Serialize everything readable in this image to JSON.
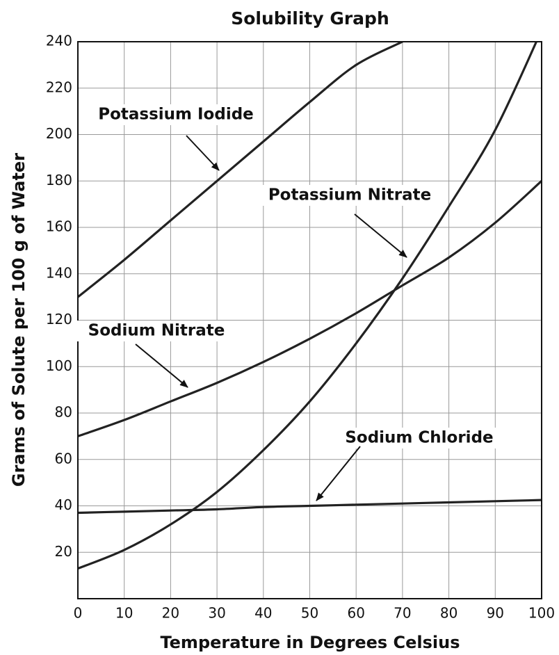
{
  "chart_data": {
    "type": "line",
    "title": "Solubility Graph",
    "x_label": "Temperature in Degrees Celsius",
    "y_label": "Grams of Solute per 100 g of Water",
    "xlim": [
      0,
      100
    ],
    "ylim": [
      0,
      240
    ],
    "xticks": [
      0,
      10,
      20,
      30,
      40,
      50,
      60,
      70,
      80,
      90,
      100
    ],
    "yticks": [
      20,
      40,
      60,
      80,
      100,
      120,
      140,
      160,
      180,
      200,
      220,
      240
    ],
    "grid": true,
    "series": [
      {
        "name": "Potassium Iodide",
        "color": "#222222",
        "x": [
          0,
          10,
          20,
          30,
          40,
          50,
          60,
          70
        ],
        "values": [
          130,
          146,
          163,
          180,
          197,
          214,
          230,
          240
        ]
      },
      {
        "name": "Potassium Nitrate",
        "color": "#222222",
        "x": [
          0,
          10,
          20,
          30,
          40,
          50,
          60,
          70,
          80,
          90,
          100
        ],
        "values": [
          13,
          21,
          32,
          46,
          64,
          85,
          110,
          138,
          169,
          202,
          245
        ]
      },
      {
        "name": "Sodium Nitrate",
        "color": "#222222",
        "x": [
          0,
          10,
          20,
          30,
          40,
          50,
          60,
          70,
          80,
          90,
          100
        ],
        "values": [
          70,
          77,
          85,
          93,
          102,
          112,
          123,
          135,
          147,
          162,
          180
        ]
      },
      {
        "name": "Sodium Chloride",
        "color": "#222222",
        "x": [
          0,
          10,
          20,
          30,
          40,
          50,
          60,
          70,
          80,
          90,
          100
        ],
        "values": [
          37,
          37.5,
          38,
          38.5,
          39.5,
          40,
          40.5,
          41,
          41.5,
          42,
          42.5
        ]
      }
    ]
  }
}
